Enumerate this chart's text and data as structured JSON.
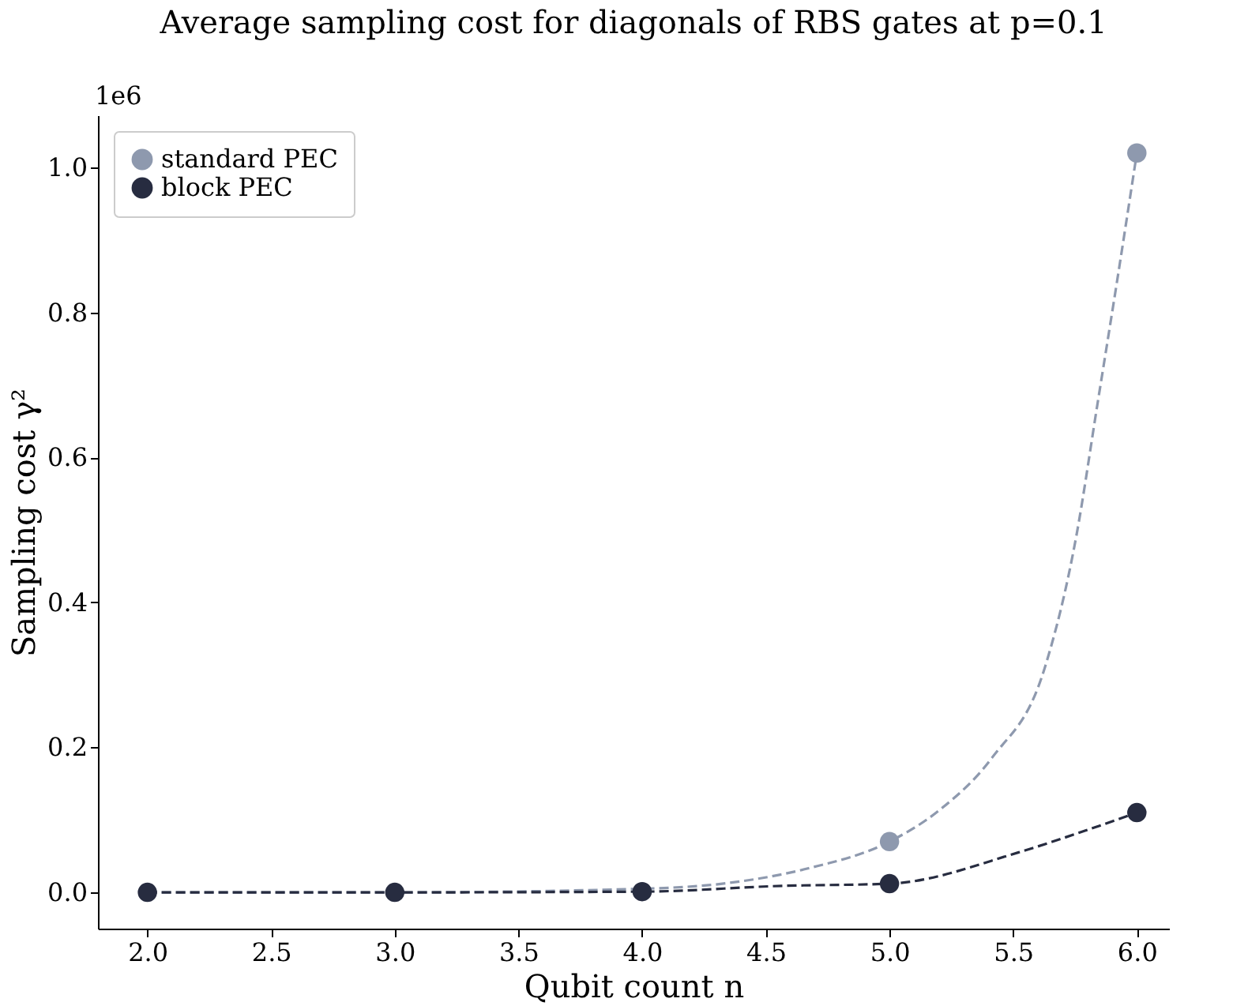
{
  "chart_data": {
    "type": "scatter",
    "title": "Average sampling cost for diagonals of RBS gates at p=0.1",
    "xlabel": "Qubit count n",
    "ylabel": "Sampling cost γ²",
    "annotations": [
      "1e6"
    ],
    "x": [
      2,
      3,
      4,
      5,
      6
    ],
    "series": [
      {
        "name": "standard PEC",
        "color": "#8e99ae",
        "values": [
          null,
          null,
          null,
          0.07,
          1.02
        ]
      },
      {
        "name": "block PEC",
        "color": "#272c40",
        "values": [
          0,
          0,
          0.001,
          0.012,
          0.11
        ]
      },
      {
        "type": "line",
        "color": "#8e99ae",
        "line_style": "dashed",
        "marker": "none",
        "x": [
          2,
          3,
          4,
          4.35,
          4.67,
          5,
          5.2,
          5.415,
          5.627,
          5.755,
          5.84,
          5.925,
          6
        ],
        "values": [
          0,
          0,
          0.005,
          0.013,
          0.033,
          0.07,
          0.113,
          0.186,
          0.309,
          0.491,
          0.672,
          0.854,
          1.02
        ]
      },
      {
        "type": "line",
        "color": "#272c40",
        "line_style": "dashed",
        "marker": "none",
        "x": [
          2,
          3,
          4,
          4.57,
          5,
          5.52,
          5.79,
          6
        ],
        "values": [
          0,
          0,
          0.001,
          0.009,
          0.012,
          0.055,
          0.085,
          0.11
        ]
      }
    ],
    "xlim": [
      1.8,
      6.13
    ],
    "ylim": [
      -0.05,
      1.072
    ],
    "xticks": [
      {
        "value": 2,
        "label": "2.0"
      },
      {
        "value": 2.5,
        "label": "2.5"
      },
      {
        "value": 3,
        "label": "3.0"
      },
      {
        "value": 3.5,
        "label": "3.5"
      },
      {
        "value": 4,
        "label": "4.0"
      },
      {
        "value": 4.5,
        "label": "4.5"
      },
      {
        "value": 5,
        "label": "5.0"
      },
      {
        "value": 5.5,
        "label": "5.5"
      },
      {
        "value": 6,
        "label": "6.0"
      }
    ],
    "yticks": [
      {
        "value": 0,
        "label": "0.0"
      },
      {
        "value": 0.2,
        "label": "0.2"
      },
      {
        "value": 0.4,
        "label": "0.4"
      },
      {
        "value": 0.6,
        "label": "0.6"
      },
      {
        "value": 0.8,
        "label": "0.8"
      },
      {
        "value": 1,
        "label": "1.0"
      }
    ],
    "legend": "top left",
    "grid": false,
    "marker": "circle"
  }
}
